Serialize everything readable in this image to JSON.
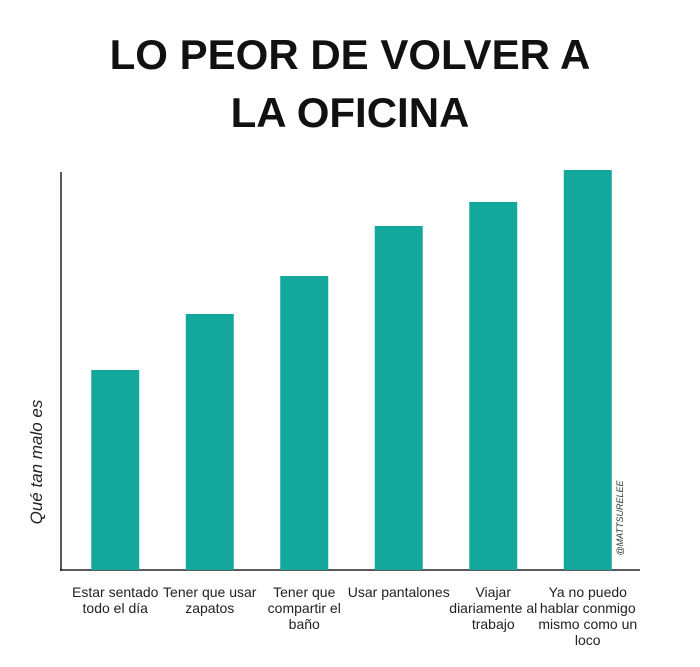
{
  "chart_data": {
    "type": "bar",
    "title": "LO PEOR DE VOLVER A LA OFICINA",
    "ylabel": "Qué tan malo es",
    "annotation": "@MATTSURELEE",
    "categories": [
      "Estar sentado todo el día",
      "Tener que usar zapatos",
      "Tener que compartir el baño",
      "Usar pantalones",
      "Viajar diariamente al trabajo",
      "Ya no puedo hablar conmigo mismo como un loco"
    ],
    "values": [
      50,
      64,
      73.5,
      86,
      92,
      100
    ],
    "color": "#13a89b",
    "ylim": [
      0,
      100
    ]
  }
}
